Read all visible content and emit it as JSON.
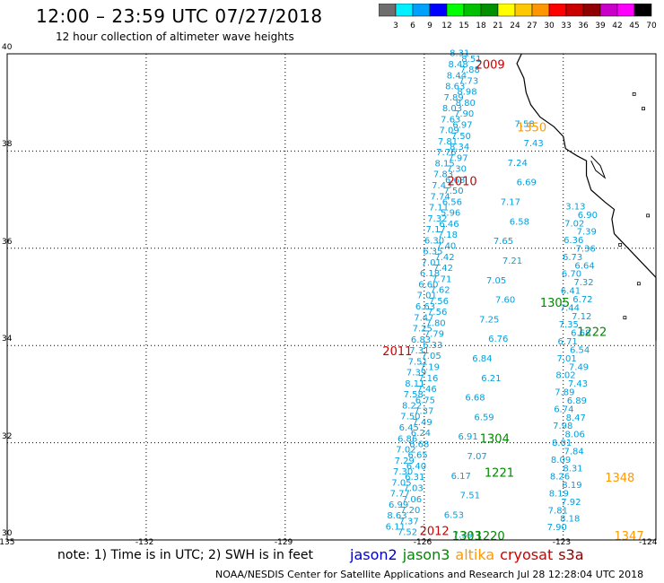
{
  "title": "12:00 – 23:59 UTC 07/27/2018",
  "subtitle": "12 hour collection of altimeter wave heights",
  "colorbar": {
    "ticks": [
      "3",
      "6",
      "9",
      "12",
      "15",
      "18",
      "21",
      "24",
      "27",
      "30",
      "33",
      "36",
      "39",
      "42",
      "45",
      "70"
    ],
    "unit": "(ft)",
    "colors": [
      "#6e6e6e",
      "#00f0ff",
      "#00a0ff",
      "#0000ff",
      "#00ff00",
      "#00c000",
      "#009000",
      "#ffff00",
      "#ffc800",
      "#ff9600",
      "#ff0000",
      "#c80000",
      "#900000",
      "#c800c8",
      "#ff00ff",
      "#000000"
    ]
  },
  "lat_labels": [
    "40",
    "38",
    "36",
    "34",
    "32",
    "30"
  ],
  "lon_labels": [
    "-135",
    "-132",
    "-129",
    "-126",
    "-123",
    "-124"
  ],
  "note": "note: 1) Time is in UTC; 2) SWH is in feet",
  "legend": [
    {
      "name": "jason2",
      "color": "#0000cc"
    },
    {
      "name": "jason3",
      "color": "#008800"
    },
    {
      "name": "altika",
      "color": "#ff9900"
    },
    {
      "name": "cryosat",
      "color": "#cc0000"
    },
    {
      "name": "s3a",
      "color": "#880000"
    }
  ],
  "credit": "NOAA/NESDIS Center for Satellite Applications and Research   Jul 28 12:28:04 UTC 2018",
  "pass_labels": [
    {
      "text": "2009",
      "color": "#cc0000",
      "lon": -124.9,
      "lat": 39.7
    },
    {
      "text": "1350",
      "color": "#ff9900",
      "lon": -124.0,
      "lat": 38.4
    },
    {
      "text": "2010",
      "color": "#cc0000",
      "lon": -125.5,
      "lat": 37.3
    },
    {
      "text": "1305",
      "color": "#008800",
      "lon": -123.5,
      "lat": 34.8
    },
    {
      "text": "1222",
      "color": "#008800",
      "lon": -122.7,
      "lat": 34.2
    },
    {
      "text": "2011",
      "color": "#cc0000",
      "lon": -126.9,
      "lat": 33.8
    },
    {
      "text": "1304",
      "color": "#008800",
      "lon": -124.8,
      "lat": 32.0
    },
    {
      "text": "1221",
      "color": "#008800",
      "lon": -124.7,
      "lat": 31.3
    },
    {
      "text": "1348",
      "color": "#ff9900",
      "lon": -122.1,
      "lat": 31.2
    },
    {
      "text": "2012",
      "color": "#cc0000",
      "lon": -126.1,
      "lat": 30.1
    },
    {
      "text": "1303",
      "color": "#008800",
      "lon": -125.4,
      "lat": 30.0
    },
    {
      "text": "1220",
      "color": "#008800",
      "lon": -124.9,
      "lat": 30.0
    },
    {
      "text": "1347",
      "color": "#ff9900",
      "lon": -121.9,
      "lat": 30.0
    }
  ],
  "tracks": [
    {
      "name": "cryosat-2009-2012",
      "color": "#00a0e0",
      "lon_start": -125.1,
      "lat_start": 39.95,
      "lon_end": -126.5,
      "lat_end": 30.1,
      "values": [
        "8.31",
        "8.51",
        "8.48",
        "7.88",
        "8.44",
        "7.73",
        "8.63",
        "8.98",
        "7.89",
        "8.80",
        "8.03",
        "7.90",
        "7.63",
        "6.97",
        "7.09",
        "7.50",
        "7.81",
        "8.34",
        "7.76",
        "7.97",
        "8.15",
        "7.30",
        "7.83",
        "6.68",
        "7.43",
        "7.50",
        "7.74",
        "6.56",
        "7.11",
        "5.96",
        "7.32",
        "6.46",
        "7.17",
        "7.18",
        "6.30",
        "7.40",
        "6.35",
        "7.42",
        "7.01",
        "7.42",
        "6.18",
        "7.71",
        "6.60",
        "7.62",
        "7.01",
        "7.56",
        "6.63",
        "7.56",
        "7.47",
        "7.80",
        "7.25",
        "7.79",
        "6.83",
        "6.33",
        "7.31",
        "7.05",
        "7.51",
        "7.19",
        "7.39",
        "7.16",
        "8.11",
        "7.46",
        "7.58",
        "6.75",
        "8.22",
        "7.37",
        "7.50",
        "7.49",
        "6.45",
        "6.24",
        "6.86",
        "6.68",
        "7.02",
        "6.65",
        "7.29",
        "6.40",
        "7.30",
        "6.31",
        "7.05",
        "7.03",
        "7.77",
        "7.06",
        "6.99",
        "7.20",
        "8.63",
        "7.37",
        "6.11",
        "7.52"
      ]
    },
    {
      "name": "jason3-1350-1303",
      "color": "#00a0e0",
      "lon_start": -123.7,
      "lat_start": 38.5,
      "lon_end": -125.3,
      "lat_end": 30.05,
      "values": [
        "7.58",
        "7.43",
        "7.24",
        "6.69",
        "7.17",
        "6.58",
        "7.65",
        "7.21",
        "7.05",
        "7.60",
        "7.25",
        "6.76",
        "6.84",
        "6.21",
        "6.68",
        "6.59",
        "6.91",
        "7.07",
        "6.17",
        "7.51",
        "6.53",
        "7.39"
      ]
    },
    {
      "name": "jason3-1305-1222",
      "color": "#00a0e0",
      "lon_start": -122.6,
      "lat_start": 36.8,
      "lon_end": -123.0,
      "lat_end": 30.2,
      "values": [
        "3.13",
        "6.90",
        "7.02",
        "7.39",
        "6.36",
        "7.36",
        "6.73",
        "6.64",
        "6.70",
        "7.32",
        "6.41",
        "6.72",
        "7.44",
        "7.12",
        "7.35",
        "6.68",
        "6.71",
        "6.54",
        "7.01",
        "7.49",
        "8.02",
        "7.43",
        "7.89",
        "6.89",
        "6.74",
        "8.47",
        "7.98",
        "8.06",
        "8.01",
        "7.84",
        "8.09",
        "8.31",
        "8.26",
        "8.19",
        "8.19",
        "7.92",
        "7.81",
        "8.18",
        "7.90"
      ]
    }
  ]
}
